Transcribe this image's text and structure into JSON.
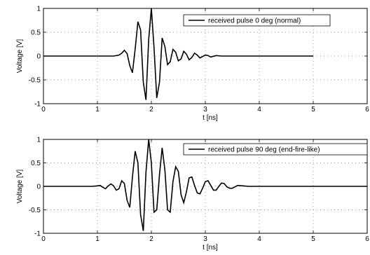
{
  "chart_data": [
    {
      "type": "line",
      "xlabel": "t [ns]",
      "ylabel": "Voltage [V]",
      "xlim": [
        0,
        6
      ],
      "ylim": [
        -1,
        1
      ],
      "xticks": [
        0,
        1,
        2,
        3,
        4,
        5,
        6
      ],
      "yticks": [
        -1,
        -0.5,
        0,
        0.5,
        1
      ],
      "xtick_labels": [
        "0",
        "1",
        "2",
        "3",
        "4",
        "5",
        "6"
      ],
      "ytick_labels": [
        "-1",
        "-0.5",
        "0",
        "0.5",
        "1"
      ],
      "grid": true,
      "legend": "top-right",
      "series": [
        {
          "name": "received pulse 0 deg (normal)",
          "color": "#000000",
          "x": [
            0,
            0.5,
            1.0,
            1.3,
            1.4,
            1.45,
            1.5,
            1.55,
            1.6,
            1.65,
            1.7,
            1.75,
            1.8,
            1.85,
            1.9,
            1.95,
            2.0,
            2.05,
            2.1,
            2.15,
            2.2,
            2.25,
            2.3,
            2.35,
            2.4,
            2.45,
            2.5,
            2.55,
            2.6,
            2.65,
            2.7,
            2.75,
            2.8,
            2.85,
            2.9,
            2.95,
            3.0,
            3.05,
            3.1,
            3.2,
            3.3,
            3.5,
            4.0,
            4.5,
            5.0
          ],
          "y": [
            0,
            0,
            0,
            0,
            0.02,
            0.06,
            0.12,
            0.05,
            -0.2,
            -0.35,
            0.15,
            0.72,
            0.55,
            -0.55,
            -0.92,
            0.35,
            1.0,
            0.18,
            -0.88,
            -0.55,
            0.38,
            0.2,
            -0.18,
            -0.12,
            0.14,
            0.08,
            -0.1,
            -0.06,
            0.1,
            0.04,
            -0.08,
            -0.03,
            0.06,
            0.02,
            -0.04,
            -0.01,
            0.02,
            0.01,
            -0.02,
            0.01,
            0,
            0,
            0,
            0,
            0
          ]
        }
      ]
    },
    {
      "type": "line",
      "xlabel": "t [ns]",
      "ylabel": "Voltage [V]",
      "xlim": [
        0,
        6
      ],
      "ylim": [
        -1,
        1
      ],
      "xticks": [
        0,
        1,
        2,
        3,
        4,
        5,
        6
      ],
      "yticks": [
        -1,
        -0.5,
        0,
        0.5,
        1
      ],
      "xtick_labels": [
        "0",
        "1",
        "2",
        "3",
        "4",
        "5",
        "6"
      ],
      "ytick_labels": [
        "-1",
        "-0.5",
        "0",
        "0.5",
        "1"
      ],
      "grid": true,
      "legend": "top-right",
      "series": [
        {
          "name": "received pulse 90 deg (end-fire-like)",
          "color": "#000000",
          "x": [
            0,
            0.5,
            0.9,
            1.0,
            1.05,
            1.1,
            1.15,
            1.2,
            1.25,
            1.3,
            1.35,
            1.4,
            1.45,
            1.5,
            1.55,
            1.6,
            1.65,
            1.7,
            1.75,
            1.8,
            1.85,
            1.9,
            1.95,
            2.0,
            2.05,
            2.1,
            2.15,
            2.2,
            2.25,
            2.3,
            2.35,
            2.4,
            2.45,
            2.5,
            2.55,
            2.6,
            2.65,
            2.7,
            2.75,
            2.8,
            2.85,
            2.9,
            2.95,
            3.0,
            3.05,
            3.1,
            3.15,
            3.2,
            3.25,
            3.3,
            3.35,
            3.4,
            3.45,
            3.5,
            3.55,
            3.6,
            3.7,
            3.8,
            4.0,
            4.5,
            5.0,
            5.5,
            6.0
          ],
          "y": [
            0,
            0,
            0,
            0.01,
            0.02,
            -0.02,
            -0.05,
            0.01,
            0.05,
            0.01,
            -0.08,
            -0.05,
            0.12,
            0.06,
            -0.3,
            -0.45,
            0.2,
            0.75,
            0.5,
            -0.6,
            -0.95,
            0.3,
            1.0,
            0.5,
            -0.55,
            -0.5,
            0.25,
            0.82,
            0.35,
            -0.5,
            -0.55,
            0.1,
            0.42,
            0.32,
            -0.18,
            -0.35,
            -0.12,
            0.18,
            0.2,
            0.02,
            -0.14,
            -0.16,
            -0.04,
            0.1,
            0.12,
            0.02,
            -0.08,
            -0.08,
            0,
            0.07,
            0.06,
            -0.01,
            -0.04,
            -0.04,
            -0.01,
            0.02,
            0.01,
            0,
            0,
            0,
            0,
            0,
            0
          ]
        }
      ]
    }
  ]
}
